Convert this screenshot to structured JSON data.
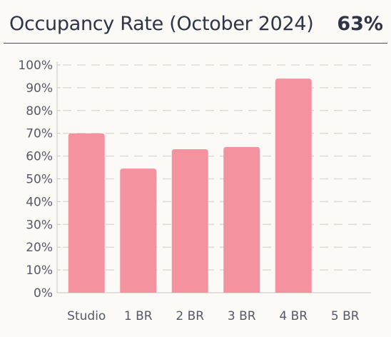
{
  "header": {
    "title": "Occupancy Rate (October 2024)",
    "value": "63%"
  },
  "chart_data": {
    "type": "bar",
    "title": "Occupancy Rate (October 2024)",
    "categories": [
      "Studio",
      "1 BR",
      "2 BR",
      "3 BR",
      "4 BR",
      "5 BR"
    ],
    "values": [
      70,
      54.5,
      63,
      64,
      94,
      0
    ],
    "unit": "%",
    "ylim": [
      0,
      100
    ],
    "yticks": [
      "0%",
      "10%",
      "20%",
      "30%",
      "40%",
      "50%",
      "60%",
      "70%",
      "80%",
      "90%",
      "100%"
    ],
    "grid": true,
    "bar_color": "#f4939f"
  }
}
